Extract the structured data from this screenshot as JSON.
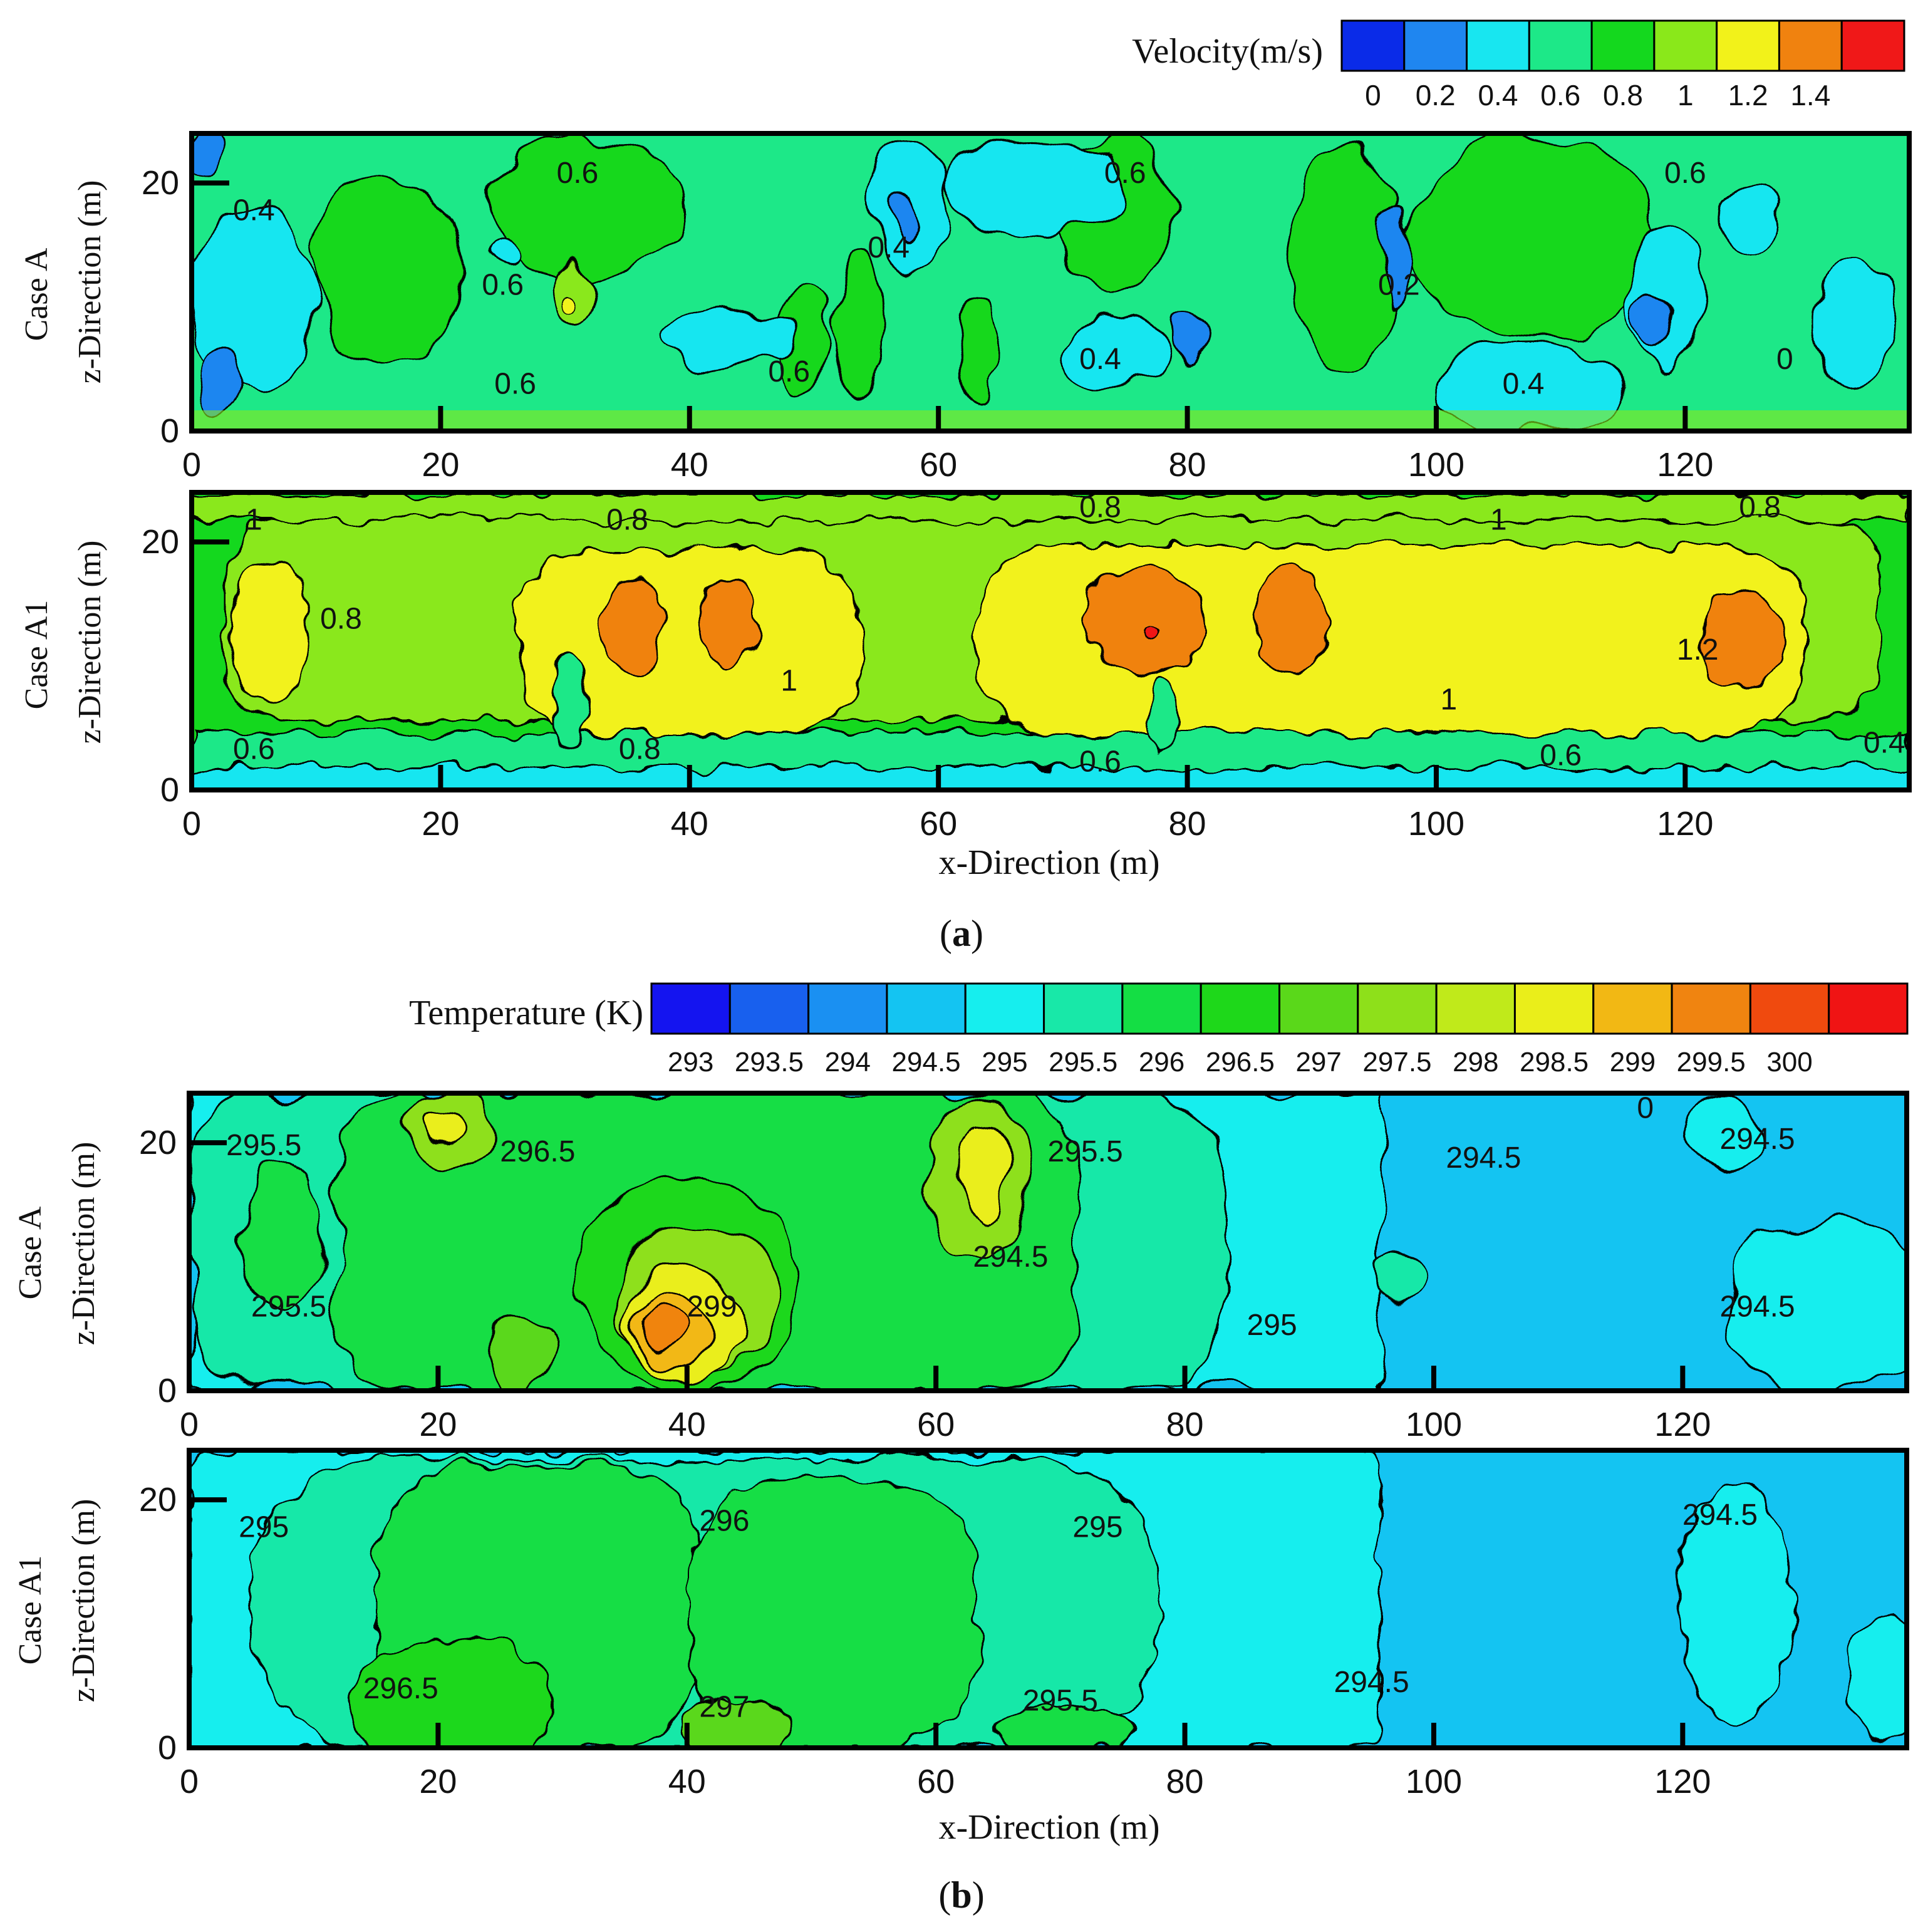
{
  "figure": {
    "panel_a_caption": "(a)",
    "panel_a_caption_letter": "a",
    "panel_b_caption": "(b)",
    "panel_b_caption_letter": "b"
  },
  "chart_data": [
    {
      "type": "heatmap",
      "panel": "a",
      "case": "Case A",
      "title": "",
      "colorbar_title": "Velocity(m/s)",
      "colorbar_levels": [
        0,
        0.2,
        0.4,
        0.6,
        0.8,
        1,
        1.2,
        1.4
      ],
      "colorbar_tick_labels": [
        "0",
        "0.2",
        "0.4",
        "0.6",
        "0.8",
        "1",
        "1.2",
        "1.4"
      ],
      "colorbar_colors": [
        "#0a2be8",
        "#1f86f0",
        "#18e6f0",
        "#1de888",
        "#14d81e",
        "#8ae81a",
        "#f2f21a",
        "#f0820f",
        "#f01818"
      ],
      "xlabel": "",
      "ylabel": "z-Direction (m)",
      "row_label": "Case A",
      "xlim": [
        0,
        138
      ],
      "ylim": [
        0,
        24
      ],
      "xticks": [
        0,
        20,
        40,
        60,
        80,
        100,
        120
      ],
      "yticks": [
        0,
        20
      ],
      "contour_labels": [
        {
          "text": "0.6",
          "x": 31,
          "z": 20
        },
        {
          "text": "0.4",
          "x": 5,
          "z": 17
        },
        {
          "text": "0.6",
          "x": 25,
          "z": 11
        },
        {
          "text": "0.6",
          "x": 26,
          "z": 3
        },
        {
          "text": "0.6",
          "x": 48,
          "z": 4
        },
        {
          "text": "0.4",
          "x": 56,
          "z": 14
        },
        {
          "text": "0.6",
          "x": 75,
          "z": 20
        },
        {
          "text": "0.4",
          "x": 73,
          "z": 5
        },
        {
          "text": "0.2",
          "x": 97,
          "z": 11
        },
        {
          "text": "0.4",
          "x": 107,
          "z": 3
        },
        {
          "text": "0.6",
          "x": 120,
          "z": 20
        },
        {
          "text": "0",
          "x": 128,
          "z": 5
        }
      ]
    },
    {
      "type": "heatmap",
      "panel": "a",
      "case": "Case A1",
      "xlabel": "x-Direction (m)",
      "ylabel": "z-Direction (m)",
      "row_label": "Case A1",
      "xlim": [
        0,
        138
      ],
      "ylim": [
        0,
        24
      ],
      "xticks": [
        0,
        20,
        40,
        60,
        80,
        100,
        120
      ],
      "yticks": [
        0,
        20
      ],
      "contour_labels": [
        {
          "text": "1",
          "x": 5,
          "z": 21
        },
        {
          "text": "0.8",
          "x": 12,
          "z": 13
        },
        {
          "text": "0.6",
          "x": 5,
          "z": 2.5
        },
        {
          "text": "0.8",
          "x": 35,
          "z": 21
        },
        {
          "text": "0.8",
          "x": 36,
          "z": 2.5
        },
        {
          "text": "1",
          "x": 48,
          "z": 8
        },
        {
          "text": "0.8",
          "x": 73,
          "z": 22
        },
        {
          "text": "0.6",
          "x": 73,
          "z": 1.5
        },
        {
          "text": "1",
          "x": 105,
          "z": 21
        },
        {
          "text": "1",
          "x": 101,
          "z": 6.5
        },
        {
          "text": "0.6",
          "x": 110,
          "z": 2
        },
        {
          "text": "0.8",
          "x": 126,
          "z": 22
        },
        {
          "text": "1.2",
          "x": 121,
          "z": 10.5
        },
        {
          "text": "0.4",
          "x": 136,
          "z": 3
        }
      ]
    },
    {
      "type": "heatmap",
      "panel": "b",
      "case": "Case A",
      "colorbar_title": "Temperature (K)",
      "colorbar_levels": [
        293,
        293.5,
        294,
        294.5,
        295,
        295.5,
        296,
        296.5,
        297,
        297.5,
        298,
        298.5,
        299,
        299.5,
        300
      ],
      "colorbar_tick_labels": [
        "293",
        "293.5",
        "294",
        "294.5",
        "295",
        "295.5",
        "296",
        "296.5",
        "297",
        "297.5",
        "298",
        "298.5",
        "299",
        "299.5",
        "300"
      ],
      "colorbar_colors": [
        "#1414f0",
        "#1860ee",
        "#1a90f2",
        "#14c4f2",
        "#16eeee",
        "#18e8a8",
        "#14de44",
        "#1ed81a",
        "#5ad81a",
        "#8ee01a",
        "#c0ea1a",
        "#eaee1a",
        "#f2b814",
        "#f08410",
        "#f04a0e",
        "#f01414"
      ],
      "xlabel": "",
      "ylabel": "z-Direction (m)",
      "row_label": "Case A",
      "xlim": [
        0,
        138
      ],
      "ylim": [
        0,
        24
      ],
      "xticks": [
        0,
        20,
        40,
        60,
        80,
        100,
        120
      ],
      "yticks": [
        0,
        20
      ],
      "contour_labels": [
        {
          "text": "295.5",
          "x": 6,
          "z": 19
        },
        {
          "text": "296.5",
          "x": 28,
          "z": 18.5
        },
        {
          "text": "295.5",
          "x": 8,
          "z": 6
        },
        {
          "text": "299",
          "x": 42,
          "z": 6
        },
        {
          "text": "294.5",
          "x": 66,
          "z": 10
        },
        {
          "text": "295.5",
          "x": 72,
          "z": 18.5
        },
        {
          "text": "295",
          "x": 87,
          "z": 4.5
        },
        {
          "text": "294.5",
          "x": 104,
          "z": 18
        },
        {
          "text": "0",
          "x": 117,
          "z": 22
        },
        {
          "text": "294.5",
          "x": 126,
          "z": 19.5
        },
        {
          "text": "294.5",
          "x": 126,
          "z": 6
        }
      ]
    },
    {
      "type": "heatmap",
      "panel": "b",
      "case": "Case A1",
      "xlabel": "x-Direction (m)",
      "ylabel": "z-Direction (m)",
      "row_label": "Case A1",
      "xlim": [
        0,
        138
      ],
      "ylim": [
        0,
        24
      ],
      "xticks": [
        0,
        20,
        40,
        60,
        80,
        100,
        120
      ],
      "yticks": [
        0,
        20
      ],
      "contour_labels": [
        {
          "text": "295",
          "x": 6,
          "z": 17
        },
        {
          "text": "296",
          "x": 43,
          "z": 17.5
        },
        {
          "text": "295",
          "x": 73,
          "z": 17
        },
        {
          "text": "296.5",
          "x": 17,
          "z": 4
        },
        {
          "text": "297",
          "x": 43,
          "z": 2.5
        },
        {
          "text": "295.5",
          "x": 70,
          "z": 3
        },
        {
          "text": "294.5",
          "x": 95,
          "z": 4.5
        },
        {
          "text": "294.5",
          "x": 123,
          "z": 18
        }
      ]
    }
  ]
}
